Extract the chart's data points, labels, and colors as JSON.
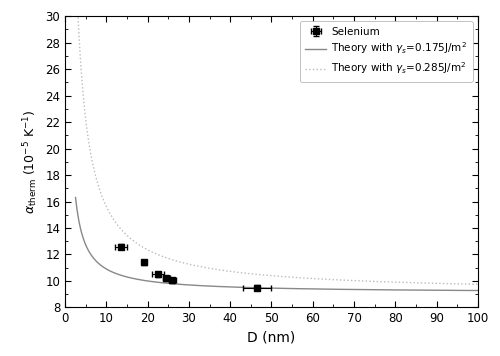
{
  "title": "",
  "xlabel": "D (nm)",
  "ylabel": "$\\alpha_{\\mathrm{therm}}$ (10$^{-5}$ K$^{-1}$)",
  "xlim": [
    0,
    100
  ],
  "ylim": [
    8,
    30
  ],
  "yticks": [
    8,
    10,
    12,
    14,
    16,
    18,
    20,
    22,
    24,
    26,
    28,
    30
  ],
  "xticks": [
    0,
    10,
    20,
    30,
    40,
    50,
    60,
    70,
    80,
    90,
    100
  ],
  "data_x": [
    13.5,
    19.0,
    22.5,
    24.5,
    26.0,
    46.5
  ],
  "data_y": [
    12.6,
    11.4,
    10.5,
    10.2,
    10.05,
    9.5
  ],
  "data_xerr": [
    1.5,
    0.5,
    1.5,
    0.8,
    0.8,
    3.5
  ],
  "data_yerr": [
    0.2,
    0.2,
    0.2,
    0.2,
    0.2,
    0.2
  ],
  "alpha0": 9.1,
  "C1": 18.0,
  "C2": 65.0,
  "D_start": 2.5,
  "line1_color": "#888888",
  "line2_color": "#bbbbbb",
  "data_color": "#000000",
  "legend_labels": [
    "Selenium",
    "Theory with $\\gamma_s$=0.175J/m$^2$",
    "Theory with $\\gamma_s$=0.285J/m$^2$"
  ],
  "figsize": [
    5.0,
    3.56
  ],
  "dpi": 100
}
